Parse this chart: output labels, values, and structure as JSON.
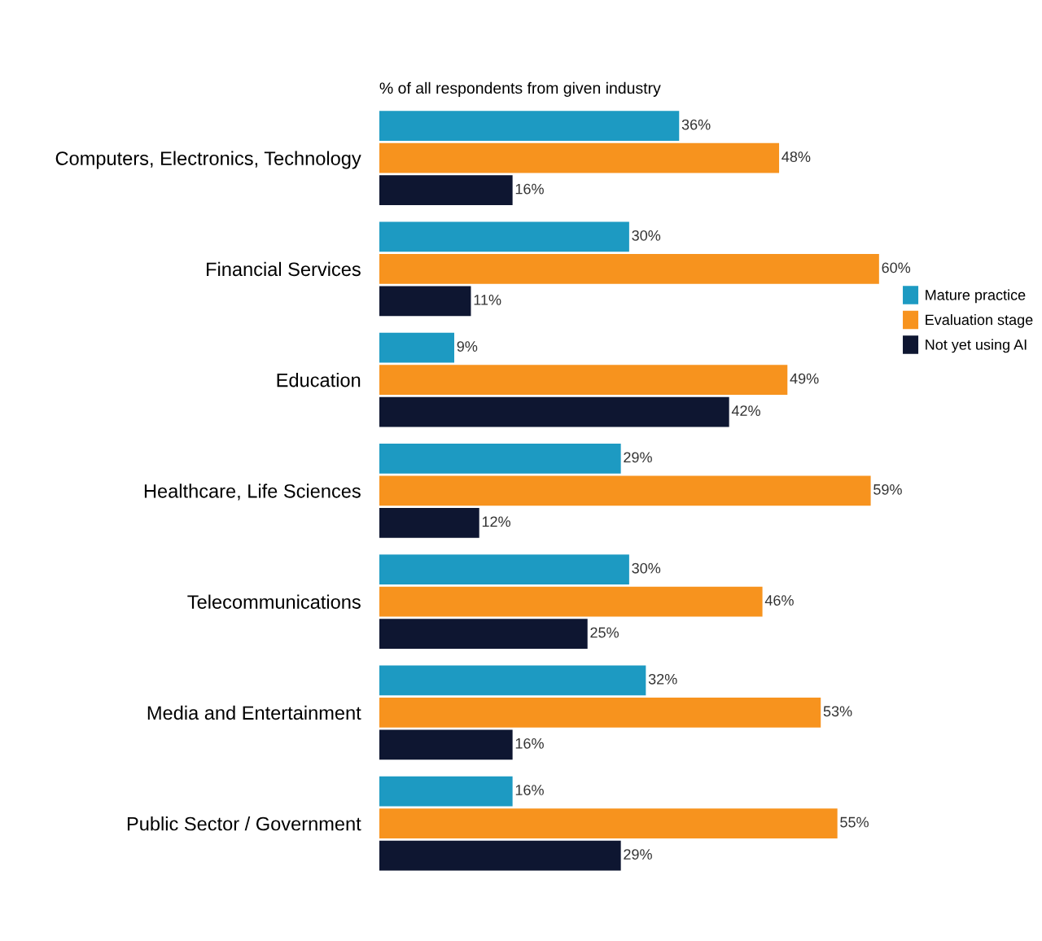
{
  "chart_data": {
    "type": "bar",
    "orientation": "horizontal",
    "title": "% of all respondents from given industry",
    "categories": [
      "Computers, Electronics, Technology",
      "Financial Services",
      "Education",
      "Healthcare, Life Sciences",
      "Telecommunications",
      "Media and Entertainment",
      "Public Sector / Government"
    ],
    "series": [
      {
        "name": "Mature practice",
        "color": "#1d9ac2",
        "values": [
          36,
          30,
          9,
          29,
          30,
          32,
          16
        ],
        "value_labels": [
          "36%",
          "30%",
          "9%",
          "29%",
          "30%",
          "32%",
          "16%"
        ]
      },
      {
        "name": "Evaluation stage",
        "color": "#f7931e",
        "values": [
          48,
          60,
          49,
          59,
          46,
          53,
          55
        ],
        "value_labels": [
          "48%",
          "60%",
          "49%",
          "59%",
          "46%",
          "53%",
          "55%"
        ]
      },
      {
        "name": "Not yet using AI",
        "color": "#0e1631",
        "values": [
          16,
          11,
          42,
          12,
          25,
          16,
          29
        ],
        "value_labels": [
          "16%",
          "11%",
          "42%",
          "12%",
          "25%",
          "16%",
          "29%"
        ]
      }
    ],
    "legend": "right",
    "grid": false
  }
}
